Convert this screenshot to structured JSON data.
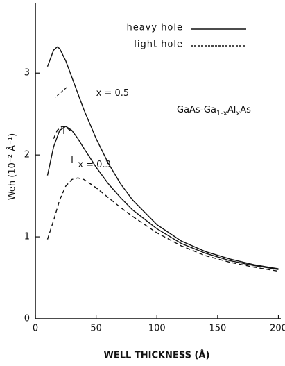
{
  "chart_data": {
    "type": "line",
    "xlabel": "WELL THICKNESS (Å)",
    "ylabel": "Weh (10⁻² Å⁻¹)",
    "xlim": [
      0,
      202
    ],
    "ylim": [
      0,
      3.85
    ],
    "xticks": [
      0,
      50,
      100,
      150,
      200
    ],
    "yticks": [
      0,
      1,
      2,
      3
    ],
    "grid": false,
    "legend": "upper right",
    "series": [
      {
        "name": "heavy hole",
        "color": "#111111",
        "dash": false,
        "x": [
          10,
          15,
          18,
          20,
          25,
          30,
          35,
          40,
          50,
          60,
          70,
          80,
          100,
          120,
          140,
          160,
          180,
          200
        ],
        "values": [
          3.08,
          3.28,
          3.32,
          3.3,
          3.15,
          2.95,
          2.75,
          2.55,
          2.2,
          1.9,
          1.65,
          1.45,
          1.15,
          0.95,
          0.82,
          0.73,
          0.66,
          0.61
        ]
      },
      {
        "name": "light hole",
        "color": "#111111",
        "dash": true,
        "x": [
          10,
          15,
          20,
          25,
          30,
          35,
          40,
          50,
          60,
          70,
          80,
          100,
          120,
          140,
          160,
          180,
          200
        ],
        "values": [
          0.97,
          1.2,
          1.45,
          1.62,
          1.7,
          1.72,
          1.7,
          1.6,
          1.48,
          1.36,
          1.25,
          1.05,
          0.89,
          0.77,
          0.69,
          0.63,
          0.58
        ]
      },
      {
        "color": "#111111",
        "dash": false,
        "x": [
          10,
          15,
          20,
          25,
          30,
          35,
          40,
          50,
          60,
          70,
          80,
          100,
          120,
          140,
          160,
          180,
          200
        ],
        "values": [
          1.75,
          2.1,
          2.3,
          2.35,
          2.3,
          2.2,
          2.08,
          1.85,
          1.65,
          1.48,
          1.33,
          1.1,
          0.92,
          0.8,
          0.71,
          0.65,
          0.6
        ]
      },
      {
        "color": "#111111",
        "dash": true,
        "x": [
          15,
          18,
          22,
          26,
          30
        ],
        "values": [
          2.2,
          2.3,
          2.35,
          2.33,
          2.28
        ]
      }
    ],
    "annotations": [
      {
        "text": "x = 0.5",
        "x": 50,
        "y": 2.75
      },
      {
        "text": "x = 0.3",
        "x": 35,
        "y": 1.88
      }
    ],
    "material": [
      "GaAs-Ga",
      "1-x",
      "Al",
      "x",
      "As"
    ]
  }
}
